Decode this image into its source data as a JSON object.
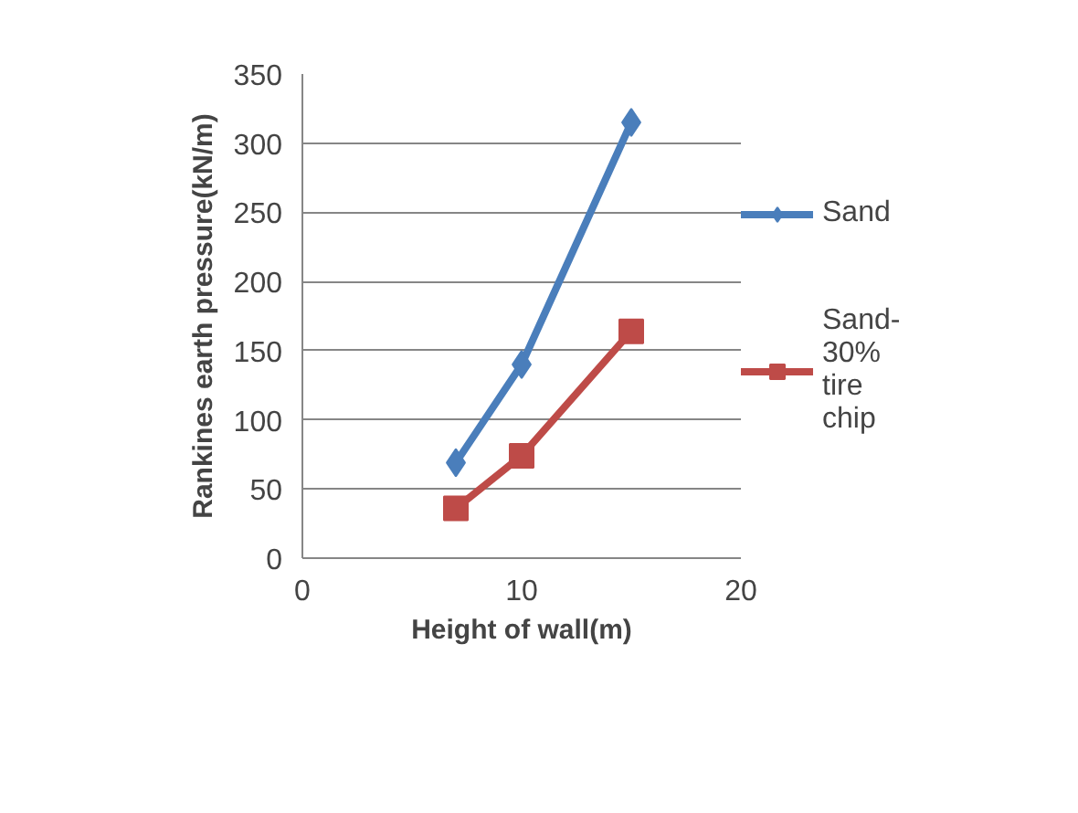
{
  "chart_data": {
    "type": "line",
    "xlabel": "Height of wall(m)",
    "ylabel": "Rankines earth pressure(kN/m)",
    "x": [
      7,
      10,
      15
    ],
    "series": [
      {
        "name": "Sand",
        "color": "#4a7ebb",
        "marker": "diamond",
        "values": [
          69,
          140,
          315
        ]
      },
      {
        "name": "Sand-30% tire chip",
        "color": "#be4b48",
        "marker": "square",
        "values": [
          36,
          74,
          164
        ]
      }
    ],
    "xlim": [
      0,
      20
    ],
    "xticks": [
      0,
      10,
      20
    ],
    "ylim": [
      0,
      350
    ],
    "yticks": [
      0,
      50,
      100,
      150,
      200,
      250,
      300,
      350
    ],
    "grid": "y",
    "legend": "right",
    "line_style": "solid"
  }
}
